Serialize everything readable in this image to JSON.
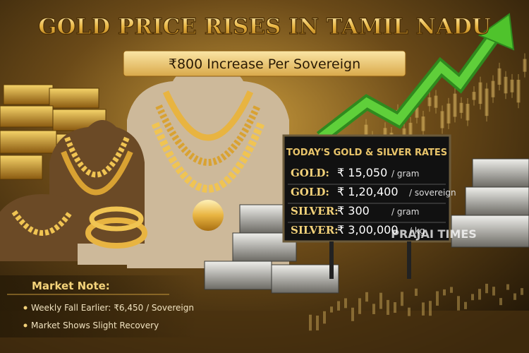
{
  "header": {
    "title": "GOLD PRICE RISES IN TAMIL NADU",
    "subtitle": "₹800 Increase Per Sovereign"
  },
  "rates_board": {
    "title": "TODAY'S GOLD & SILVER RATES",
    "rows": [
      {
        "metal": "GOLD:",
        "price": "₹ 15,050",
        "unit": "/ gram"
      },
      {
        "metal": "GOLD:",
        "price": "₹ 1,20,400",
        "unit": "/ sovereign"
      },
      {
        "metal": "SILVER:",
        "price": "₹ 300",
        "unit": "/ gram"
      },
      {
        "metal": "SILVER:",
        "price": "₹ 3,00,000",
        "unit": "/ kg"
      }
    ]
  },
  "watermark": "PRAJAI TIMES",
  "market_note": {
    "title": "Market Note:",
    "items": [
      "Weekly Fall Earlier: ₹6,450 / Sovereign",
      "Market Shows Slight Recovery"
    ]
  }
}
